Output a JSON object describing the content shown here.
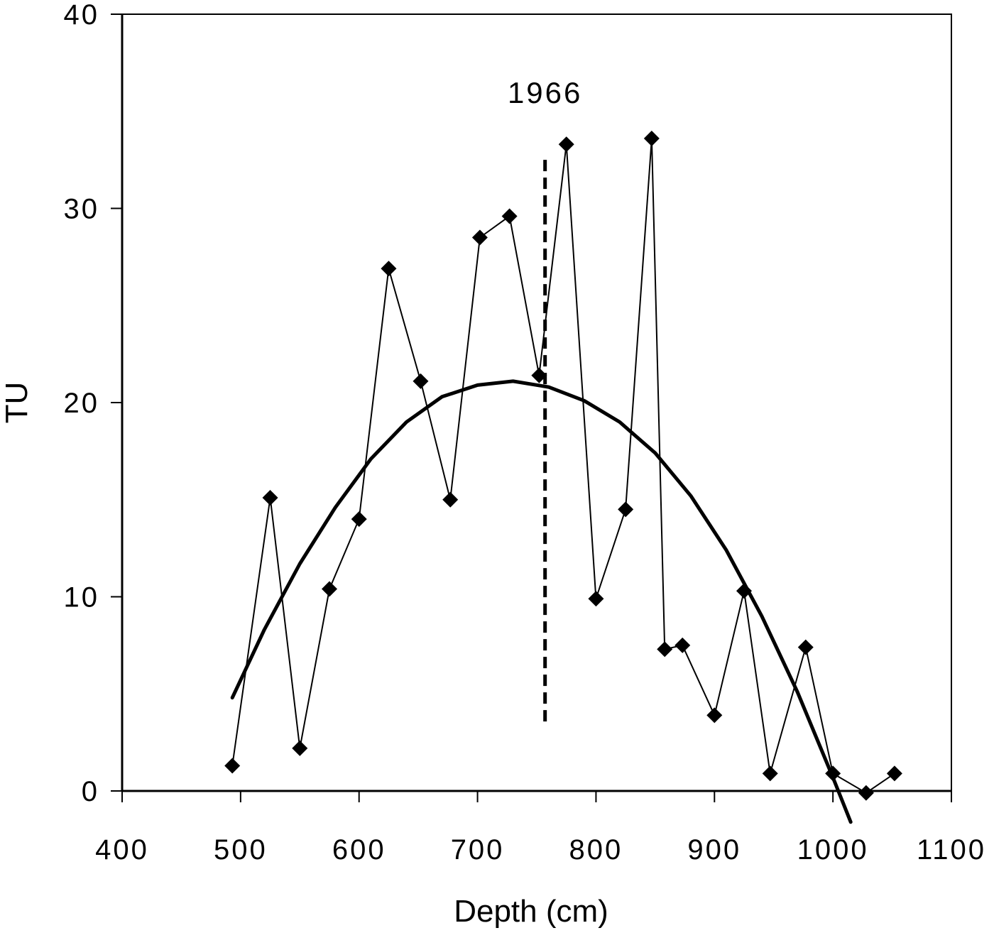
{
  "chart_data": {
    "type": "line",
    "title": "",
    "xlabel": "Depth  (cm)",
    "ylabel": "TU",
    "xlim": [
      400,
      1100
    ],
    "ylim": [
      0,
      40
    ],
    "x_ticks": [
      "400",
      "500",
      "600",
      "700",
      "800",
      "900",
      "1000",
      "1100"
    ],
    "y_ticks": [
      "0",
      "10",
      "20",
      "30",
      "40"
    ],
    "grid": false,
    "legend": "none",
    "series": [
      {
        "style": "thin line with diamond markers",
        "color": "#000000",
        "x": [
          493,
          525,
          550,
          575,
          600,
          625,
          652,
          677,
          702,
          727,
          752,
          775,
          800,
          825,
          847,
          858,
          873,
          900,
          925,
          947,
          977,
          1000,
          1028,
          1052
        ],
        "y": [
          1.3,
          15.1,
          2.2,
          10.4,
          14.0,
          26.9,
          21.1,
          15.0,
          28.5,
          29.6,
          21.4,
          33.3,
          9.9,
          14.5,
          33.6,
          7.3,
          7.5,
          3.9,
          10.3,
          0.9,
          7.4,
          0.9,
          -0.1,
          0.9
        ]
      },
      {
        "style": "thick fitted curve",
        "color": "#000000",
        "x": [
          493,
          520,
          550,
          580,
          610,
          640,
          670,
          700,
          730,
          760,
          790,
          820,
          850,
          880,
          910,
          940,
          970,
          1000,
          1015
        ],
        "y": [
          4.8,
          8.3,
          11.7,
          14.6,
          17.1,
          19.0,
          20.3,
          20.9,
          21.1,
          20.8,
          20.1,
          19.0,
          17.4,
          15.2,
          12.4,
          9.0,
          5.1,
          0.7,
          -1.6
        ]
      }
    ],
    "annotations": [
      {
        "text": "1966",
        "x": 757,
        "style": "dashed vertical line",
        "y_range": [
          3.4,
          32.5
        ]
      }
    ]
  }
}
